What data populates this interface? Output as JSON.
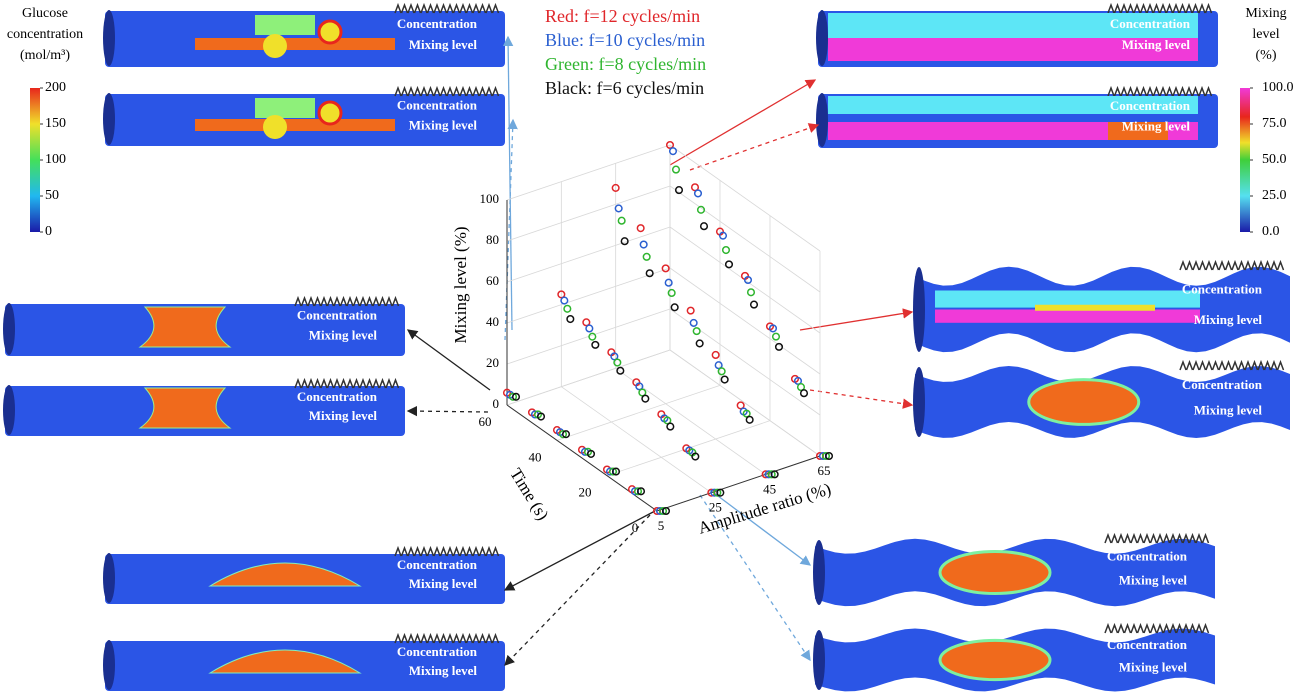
{
  "chart_data": {
    "type": "scatter3d",
    "xlabel": "Time (s)",
    "ylabel": "Amplitude ratio (%)",
    "zlabel": "Mixing level (%)",
    "x": [
      0,
      10,
      20,
      30,
      40,
      50,
      60
    ],
    "amplitudes": [
      5,
      25,
      45,
      65
    ],
    "xlim": [
      0,
      60
    ],
    "ylim": [
      5,
      65
    ],
    "zlim": [
      0,
      100
    ],
    "xticks": [
      0,
      20,
      40,
      60
    ],
    "yticks": [
      5,
      25,
      45,
      65
    ],
    "zticks": [
      0,
      20,
      40,
      60,
      80,
      100
    ],
    "grid": true,
    "series": [
      {
        "name": "Red: f=12 cycles/min",
        "color": "#e0262a",
        "values": [
          [
            0,
            2,
            3,
            4,
            5,
            5,
            6
          ],
          [
            0,
            13,
            21,
            28,
            34,
            40,
            45
          ],
          [
            0,
            25,
            41,
            54,
            66,
            77,
            88
          ],
          [
            0,
            29,
            46,
            62,
            75,
            88,
            100
          ]
        ]
      },
      {
        "name": "Blue: f=10 cycles/min",
        "color": "#2a5fd0",
        "values": [
          [
            0,
            1,
            2,
            3,
            4,
            4,
            5
          ],
          [
            0,
            12,
            19,
            26,
            32,
            37,
            42
          ],
          [
            0,
            22,
            36,
            48,
            59,
            69,
            78
          ],
          [
            0,
            28,
            45,
            60,
            73,
            85,
            97
          ]
        ]
      },
      {
        "name": "Green: f=8 cycles/min",
        "color": "#2fb52f",
        "values": [
          [
            0,
            1,
            2,
            3,
            3,
            4,
            4
          ],
          [
            0,
            11,
            18,
            23,
            29,
            33,
            38
          ],
          [
            0,
            21,
            33,
            44,
            54,
            63,
            72
          ],
          [
            0,
            25,
            41,
            54,
            66,
            77,
            88
          ]
        ]
      },
      {
        "name": "Black: f=6 cycles/min",
        "color": "#111111",
        "values": [
          [
            0,
            1,
            2,
            2,
            3,
            3,
            4
          ],
          [
            0,
            9,
            15,
            20,
            25,
            29,
            33
          ],
          [
            0,
            18,
            29,
            38,
            47,
            55,
            62
          ],
          [
            0,
            22,
            36,
            48,
            59,
            69,
            78
          ]
        ]
      }
    ]
  },
  "colorbars": [
    {
      "title": [
        "Glucose",
        "concentration",
        "(mol/m³)"
      ],
      "ticks": [
        0,
        50,
        100,
        150,
        200
      ]
    },
    {
      "title": [
        "Mixing",
        "level",
        "(%)"
      ],
      "ticks": [
        {
          "value": 0,
          "label": "0.0"
        },
        {
          "value": 25,
          "label": "25.0"
        },
        {
          "value": 50,
          "label": "50.0"
        },
        {
          "value": 75,
          "label": "75.0"
        },
        {
          "value": 100,
          "label": "100.0"
        }
      ]
    }
  ],
  "panels": [
    {
      "labels": [
        "Concentration",
        "Mixing level"
      ]
    },
    {
      "labels": [
        "Concentration",
        "Mixing level"
      ]
    },
    {
      "labels": [
        "Concentration",
        "Mixing level"
      ]
    },
    {
      "labels": [
        "Concentration",
        "Mixing level"
      ]
    },
    {
      "labels": [
        "Concentration",
        "Mixing level"
      ]
    },
    {
      "labels": [
        "Concentration",
        "Mixing level"
      ]
    },
    {
      "labels": [
        "Concentration",
        "Mixing level"
      ]
    },
    {
      "labels": [
        "Concentration",
        "Mixing level"
      ]
    },
    {
      "labels": [
        "Concentration",
        "Mixing level"
      ]
    },
    {
      "labels": [
        "Concentration",
        "Mixing level"
      ]
    },
    {
      "labels": [
        "Concentration",
        "Mixing level"
      ]
    },
    {
      "labels": [
        "Concentration",
        "Mixing level"
      ]
    }
  ]
}
